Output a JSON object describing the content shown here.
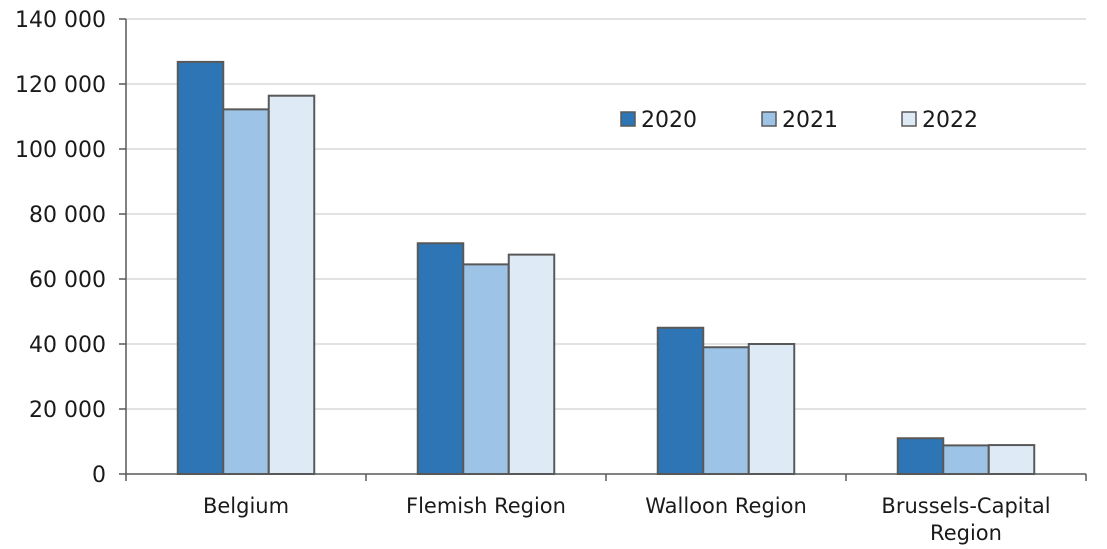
{
  "chart_data": {
    "type": "bar",
    "title": "",
    "xlabel": "",
    "ylabel": "",
    "categories": [
      [
        "Belgium"
      ],
      [
        "Flemish Region"
      ],
      [
        "Walloon Region"
      ],
      [
        "Brussels-Capital",
        "Region"
      ]
    ],
    "series": [
      {
        "name": "2020",
        "color": "#2e75b6",
        "values": [
          126800,
          71000,
          45000,
          11000
        ]
      },
      {
        "name": "2021",
        "color": "#9dc3e6",
        "values": [
          112200,
          64500,
          39000,
          8800
        ]
      },
      {
        "name": "2022",
        "color": "#deebf7",
        "values": [
          116400,
          67500,
          40000,
          8900
        ]
      }
    ],
    "ylim": [
      0,
      140000
    ],
    "yticks": [
      {
        "value": 0,
        "label": "0"
      },
      {
        "value": 20000,
        "label": "20 000"
      },
      {
        "value": 40000,
        "label": "40 000"
      },
      {
        "value": 60000,
        "label": "60 000"
      },
      {
        "value": 80000,
        "label": "80 000"
      },
      {
        "value": 100000,
        "label": "100 000"
      },
      {
        "value": 120000,
        "label": "120 000"
      },
      {
        "value": 140000,
        "label": "140 000"
      }
    ],
    "grid": true,
    "legend_position": "top-right",
    "bar_outline_color": "#595959",
    "grid_color": "#d9d9d9",
    "axis_color": "#595959"
  }
}
